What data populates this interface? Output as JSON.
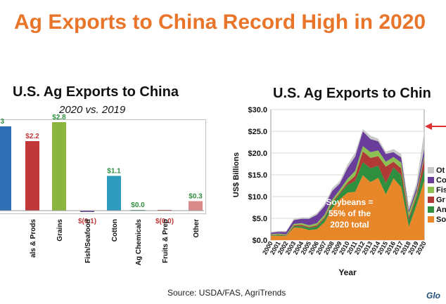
{
  "page": {
    "title": "Ag Exports to China Record High in 2020",
    "source": "Source: USDA/FAS, AgriTrends",
    "logo_text": "Glo"
  },
  "left_chart": {
    "title": "U.S. Ag Exports to China",
    "subtitle": "2020 vs. 2019"
  },
  "right_chart": {
    "title": "U.S. Ag Exports to Chin",
    "annotation": "Soybeans = 55% of the 2020 total",
    "arrow_color": "#e03030"
  },
  "chart_data": [
    {
      "type": "bar",
      "title": "U.S. Ag Exports to China",
      "subtitle": "2020 vs. 2019",
      "categories": [
        "",
        "als & Prods",
        "Grains",
        "Fish/Seafood",
        "Cotton",
        "Ag Chemicals",
        "Fruits & Prep",
        "Other"
      ],
      "values": [
        null,
        2.2,
        2.8,
        -0.1,
        1.1,
        0.0,
        -0.0,
        0.3
      ],
      "data_labels": [
        "3",
        "$2.2",
        "$2.8",
        "$(0.1)",
        "$1.1",
        "$0.0",
        "$(0.0)",
        "$0.3"
      ],
      "colors": [
        "#2e6fb5",
        "#c0383a",
        "#8cb53f",
        "#6b4a9c",
        "#2f9bbf",
        "#2e9c5e",
        "#c0383a",
        "#d88a8a"
      ],
      "label_colors": [
        "#2e8f3e",
        "#c0383a",
        "#2e8f3e",
        "#c0383a",
        "#2e8f3e",
        "#2e8f3e",
        "#c0383a",
        "#2e8f3e"
      ],
      "legend": "none",
      "grid": false
    },
    {
      "type": "area",
      "title": "U.S. Ag Exports to Chin",
      "xlabel": "Year",
      "ylabel": "US$ Billions",
      "ylim": [
        0,
        30
      ],
      "yticks": [
        "$0.0",
        "$5.0",
        "$10.0",
        "$15.0",
        "$20.0",
        "$25.0",
        "$30.0"
      ],
      "x": [
        "2000",
        "2001",
        "2002",
        "2003",
        "2004",
        "2005",
        "2006",
        "2007",
        "2008",
        "2009",
        "2010",
        "2011",
        "2012",
        "2013",
        "2014",
        "2015",
        "2016",
        "2017",
        "2018",
        "2019",
        "2020"
      ],
      "series": [
        {
          "name": "So",
          "color": "#e8872a",
          "values": [
            1.0,
            1.0,
            0.9,
            2.9,
            2.8,
            2.3,
            2.5,
            4.1,
            7.3,
            9.4,
            10.9,
            11.1,
            14.9,
            13.3,
            14.3,
            10.5,
            14.2,
            12.2,
            3.1,
            8.0,
            13.6
          ]
        },
        {
          "name": "An",
          "color": "#2e8f3e",
          "values": [
            0.1,
            0.2,
            0.1,
            0.3,
            0.4,
            0.5,
            0.6,
            0.8,
            1.1,
            1.2,
            1.8,
            2.5,
            3.0,
            3.2,
            2.8,
            2.6,
            2.5,
            2.7,
            1.6,
            1.8,
            2.8
          ]
        },
        {
          "name": "Gr",
          "color": "#b03a36",
          "values": [
            0.1,
            0.1,
            0.1,
            0.2,
            0.3,
            0.2,
            0.3,
            0.3,
            0.3,
            0.3,
            0.5,
            1.2,
            2.5,
            2.4,
            2.2,
            3.8,
            1.3,
            1.6,
            0.6,
            0.5,
            2.4
          ]
        },
        {
          "name": "Fis",
          "color": "#8cc152",
          "values": [
            0.2,
            0.2,
            0.2,
            0.3,
            0.4,
            0.4,
            0.5,
            0.6,
            0.6,
            0.7,
            0.9,
            1.1,
            1.2,
            1.3,
            1.3,
            1.1,
            1.1,
            1.3,
            1.0,
            0.8,
            0.6
          ]
        },
        {
          "name": "Co",
          "color": "#6a3d9a",
          "values": [
            0.3,
            0.4,
            0.6,
            0.9,
            1.0,
            1.5,
            1.9,
            2.0,
            2.0,
            1.4,
            2.5,
            3.3,
            3.4,
            3.0,
            2.1,
            1.8,
            1.1,
            1.2,
            0.6,
            0.9,
            1.5
          ]
        },
        {
          "name": "Ot",
          "color": "#c8c8c8",
          "values": [
            0.2,
            0.2,
            0.2,
            0.3,
            0.3,
            0.3,
            0.4,
            0.5,
            0.6,
            0.6,
            0.8,
            0.9,
            0.5,
            0.8,
            0.6,
            0.5,
            0.7,
            0.8,
            0.8,
            1.1,
            4.0
          ]
        }
      ],
      "legend": "right",
      "grid": true
    }
  ]
}
